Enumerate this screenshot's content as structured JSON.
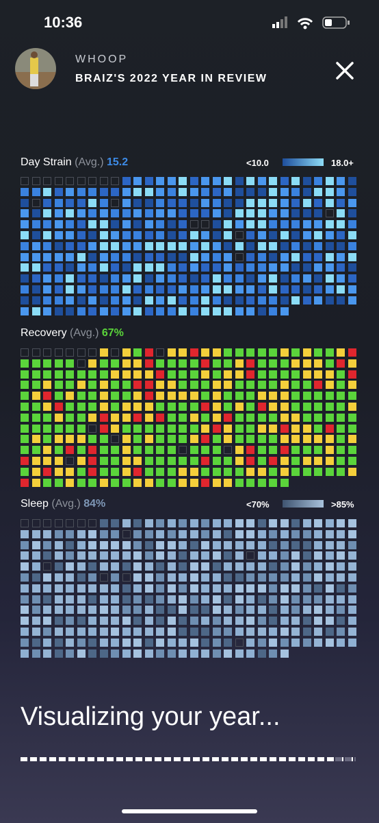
{
  "status_bar": {
    "time": "10:36"
  },
  "header": {
    "brand": "WHOOP",
    "title": "BRAIZ'S 2022 YEAR IN REVIEW"
  },
  "sections": [
    {
      "label": "Day Strain",
      "avg_label": "(Avg.)",
      "avg": "15.2",
      "legend_min": "<10.0",
      "legend_max": "18.0+"
    },
    {
      "label": "Recovery",
      "avg_label": "(Avg.)",
      "avg": "67%"
    },
    {
      "label": "Sleep",
      "avg_label": "(Avg.)",
      "avg": "84%",
      "legend_min": "<70%",
      "legend_max": ">85%"
    }
  ],
  "footer": {
    "caption": "Visualizing your year..."
  }
}
